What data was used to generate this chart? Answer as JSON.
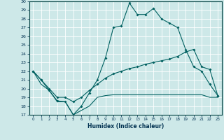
{
  "xlabel": "Humidex (Indice chaleur)",
  "xlim": [
    -0.5,
    23.5
  ],
  "ylim": [
    17,
    30
  ],
  "yticks": [
    17,
    18,
    19,
    20,
    21,
    22,
    23,
    24,
    25,
    26,
    27,
    28,
    29,
    30
  ],
  "xticks": [
    0,
    1,
    2,
    3,
    4,
    5,
    6,
    7,
    8,
    9,
    10,
    11,
    12,
    13,
    14,
    15,
    16,
    17,
    18,
    19,
    20,
    21,
    22,
    23
  ],
  "bg_color": "#cde8e8",
  "grid_color": "#ffffff",
  "line_color": "#006060",
  "line1_x": [
    0,
    1,
    2,
    3,
    4,
    5,
    6,
    7,
    8,
    9,
    10,
    11,
    12,
    13,
    14,
    15,
    16,
    17,
    18,
    19,
    20,
    21,
    22,
    23
  ],
  "line1_y": [
    22.0,
    21.0,
    19.8,
    18.6,
    18.5,
    17.0,
    18.0,
    19.5,
    21.0,
    23.5,
    27.0,
    27.2,
    29.8,
    28.5,
    28.5,
    29.2,
    28.0,
    27.5,
    27.0,
    24.5,
    22.5,
    22.0,
    20.5,
    19.2
  ],
  "line2_x": [
    0,
    1,
    2,
    3,
    4,
    5,
    6,
    7,
    8,
    9,
    10,
    11,
    12,
    13,
    14,
    15,
    16,
    17,
    18,
    19,
    20,
    21,
    22,
    23
  ],
  "line2_y": [
    22.0,
    21.0,
    20.0,
    19.0,
    19.0,
    18.5,
    19.0,
    19.8,
    20.5,
    21.2,
    21.7,
    22.0,
    22.3,
    22.5,
    22.8,
    23.0,
    23.2,
    23.4,
    23.7,
    24.2,
    24.5,
    22.5,
    22.2,
    19.2
  ],
  "line3_x": [
    0,
    1,
    2,
    3,
    4,
    5,
    6,
    7,
    8,
    9,
    10,
    11,
    12,
    13,
    14,
    15,
    16,
    17,
    18,
    19,
    20,
    21,
    22,
    23
  ],
  "line3_y": [
    22.0,
    20.5,
    19.8,
    18.5,
    18.5,
    17.0,
    17.5,
    18.0,
    19.0,
    19.2,
    19.3,
    19.3,
    19.3,
    19.3,
    19.3,
    19.3,
    19.3,
    19.3,
    19.3,
    19.3,
    19.3,
    19.3,
    19.0,
    19.0
  ],
  "marker_style": "D",
  "marker_size": 2.0,
  "linewidth": 0.8
}
